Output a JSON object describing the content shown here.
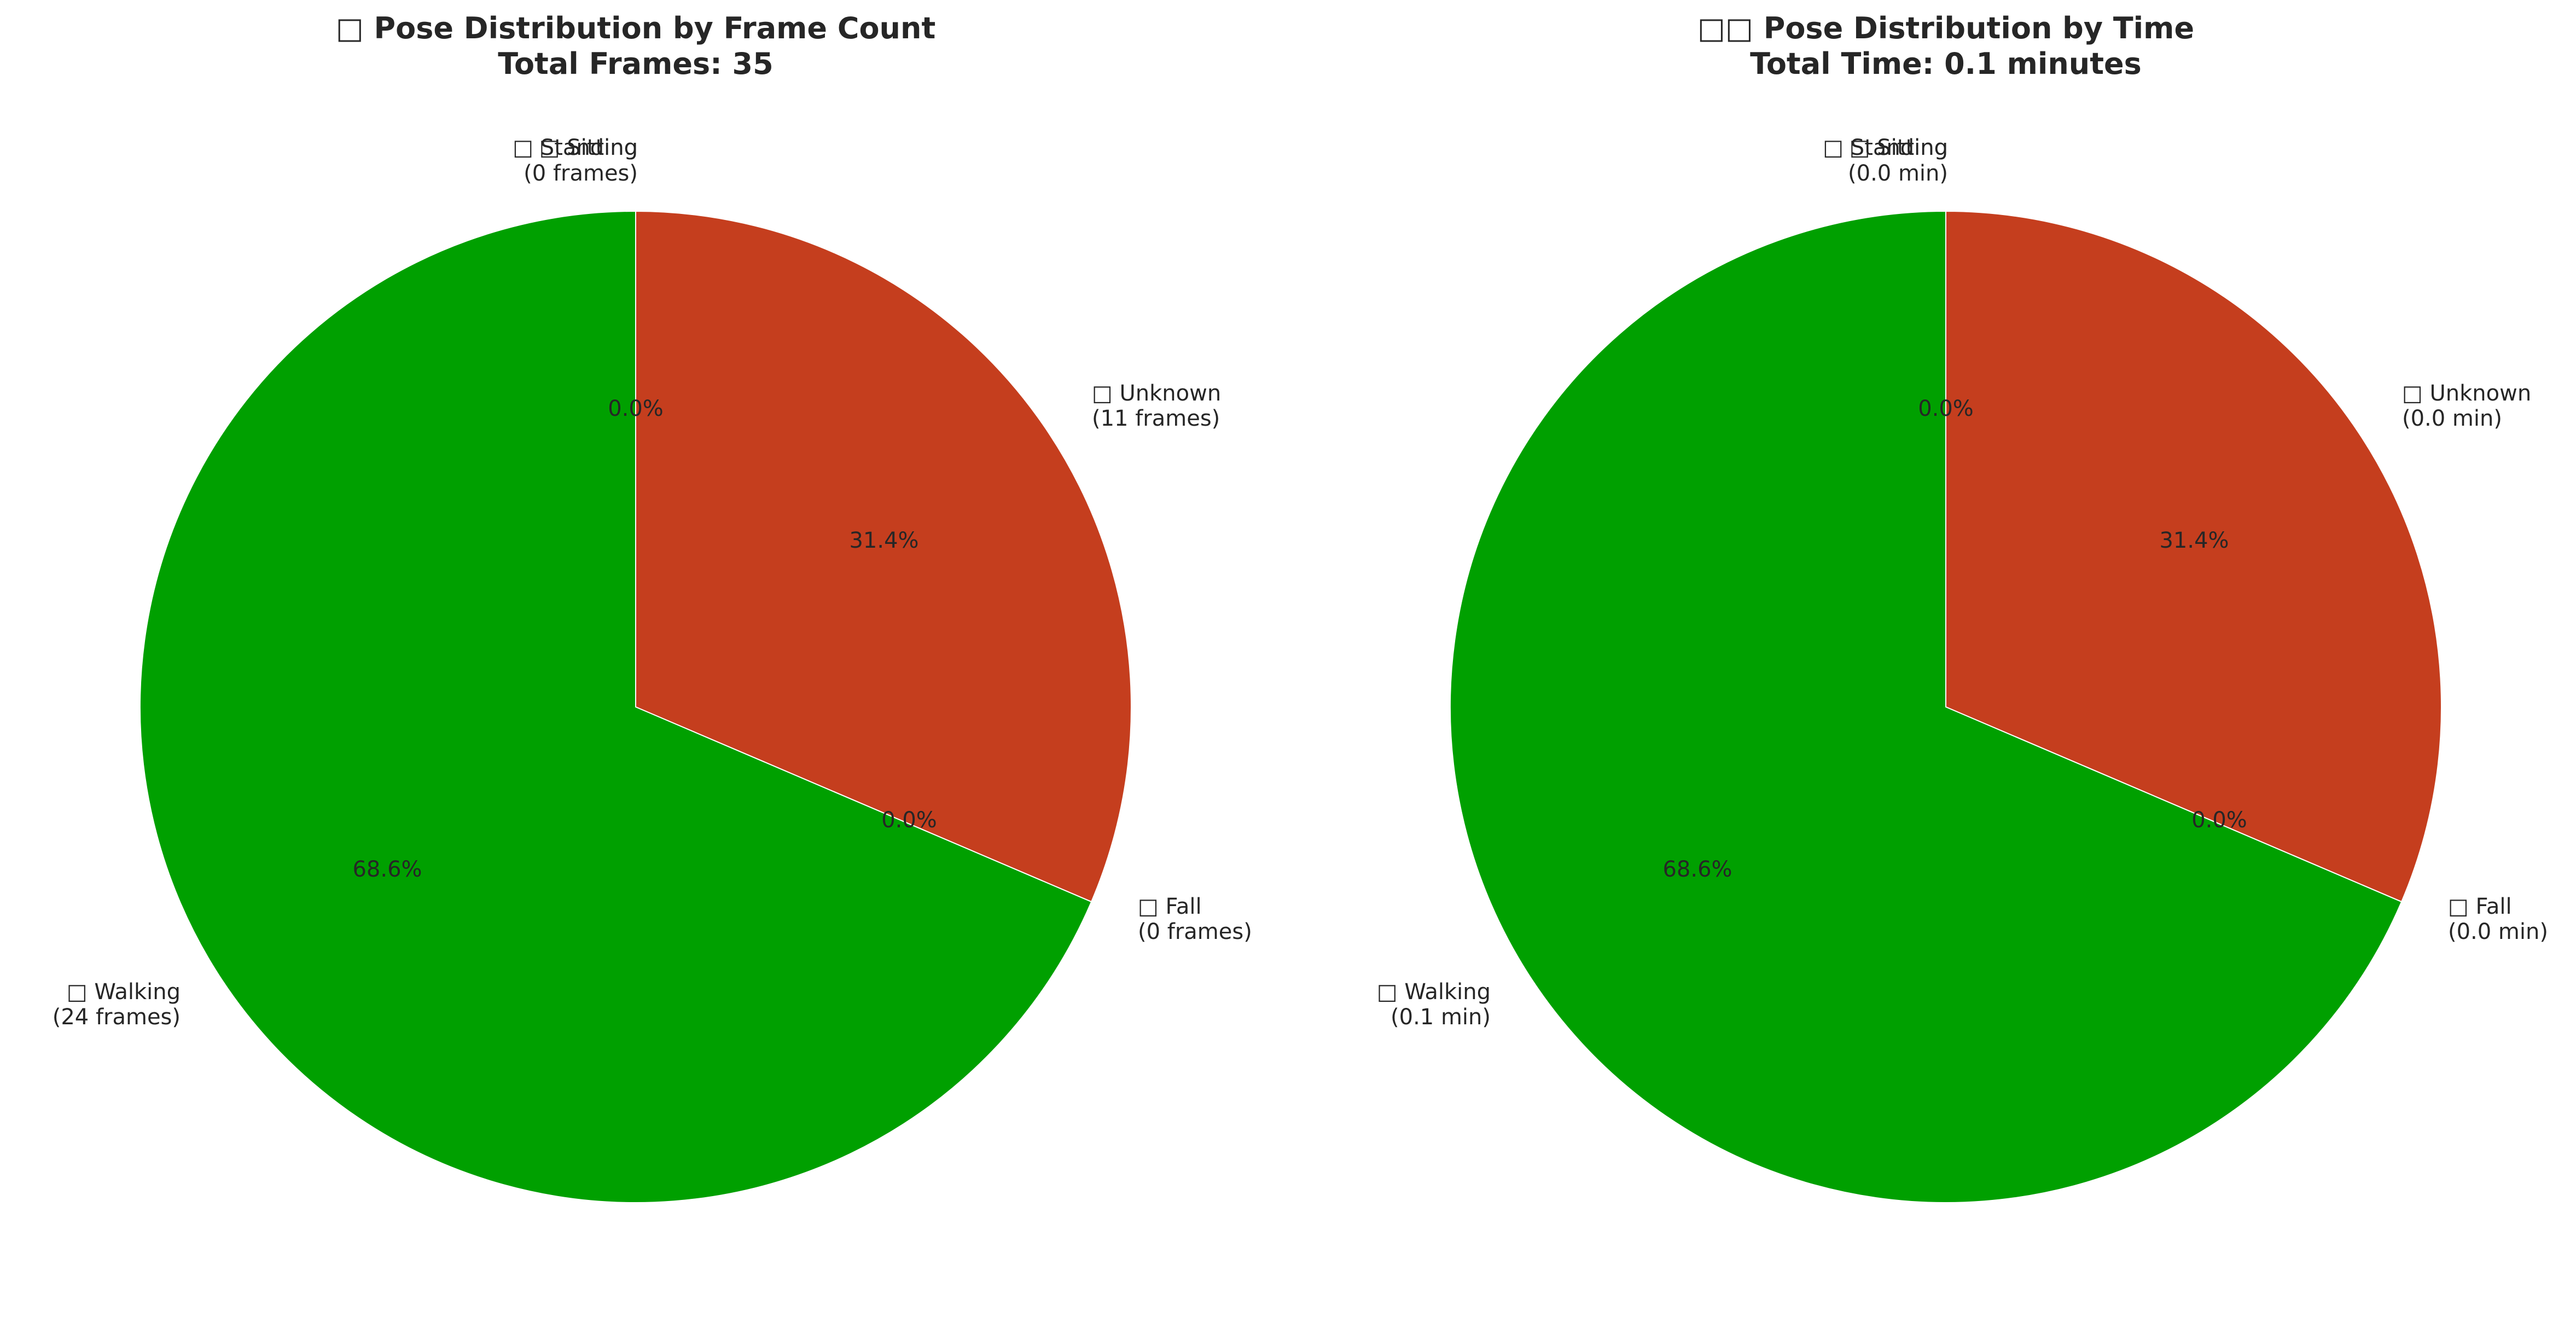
{
  "chart_data": [
    {
      "type": "pie",
      "title": "□ Pose Distribution by Frame Count",
      "subtitle": "Total Frames: 35",
      "slices": [
        {
          "label": "□ Standing",
          "detail": "(0 frames)",
          "value": 0,
          "pct": "0.0%",
          "color": "#00a000"
        },
        {
          "label": "□ Unknown",
          "detail": "(11 frames)",
          "value": 11,
          "pct": "31.4%",
          "color": "#c53e1e"
        },
        {
          "label": "□ Fall",
          "detail": "(0 frames)",
          "value": 0,
          "pct": "0.0%",
          "color": "#ff0000"
        },
        {
          "label": "□ Walking",
          "detail": "(24 frames)",
          "value": 24,
          "pct": "68.6%",
          "color": "#00a000"
        },
        {
          "label": "□ Sitting",
          "detail": "",
          "value": 0,
          "pct": "0.0%",
          "color": "#0000ff"
        }
      ]
    },
    {
      "type": "pie",
      "title": "□□ Pose Distribution by Time",
      "subtitle": "Total Time: 0.1 minutes",
      "slices": [
        {
          "label": "□ Standing",
          "detail": "(0.0 min)",
          "value": 0,
          "pct": "0.0%",
          "color": "#00a000"
        },
        {
          "label": "□ Unknown",
          "detail": "(0.0 min)",
          "value": 11,
          "pct": "31.4%",
          "color": "#c53e1e"
        },
        {
          "label": "□ Fall",
          "detail": "(0.0 min)",
          "value": 0,
          "pct": "0.0%",
          "color": "#ff0000"
        },
        {
          "label": "□ Walking",
          "detail": "(0.1 min)",
          "value": 24,
          "pct": "68.6%",
          "color": "#00a000"
        },
        {
          "label": "□ Sitting",
          "detail": "",
          "value": 0,
          "pct": "0.0%",
          "color": "#0000ff"
        }
      ]
    }
  ]
}
